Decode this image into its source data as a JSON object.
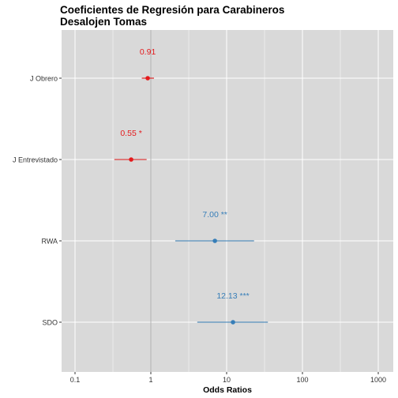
{
  "chart_data": {
    "type": "forest",
    "title_lines": [
      "Coeficientes de Regresión para Carabineros",
      "Desalojen Tomas"
    ],
    "xlabel": "Odds Ratios",
    "ylabel": "",
    "x_scale": "log10",
    "xlim": [
      0.06,
      2000
    ],
    "x_ticks": [
      0.1,
      1,
      10,
      100,
      1000
    ],
    "x_tick_labels": [
      "0.1",
      "1",
      "10",
      "100",
      "1000"
    ],
    "reference_line": 1,
    "grid": true,
    "colors": {
      "negative": "#e41a1c",
      "positive": "#377eb8",
      "panel": "#d9d9d9",
      "grid": "#ffffff",
      "reference": "#b3b3b3"
    },
    "terms": [
      {
        "label": "J Obrero",
        "estimate": 0.91,
        "ci_low": 0.76,
        "ci_high": 1.1,
        "value_label": "0.91",
        "color_key": "negative"
      },
      {
        "label": "J Entrevistado",
        "estimate": 0.55,
        "ci_low": 0.33,
        "ci_high": 0.88,
        "value_label": "0.55 *",
        "color_key": "negative"
      },
      {
        "label": "RWA",
        "estimate": 7.0,
        "ci_low": 2.1,
        "ci_high": 23.0,
        "value_label": "7.00 **",
        "color_key": "positive"
      },
      {
        "label": "SDO",
        "estimate": 12.13,
        "ci_low": 4.1,
        "ci_high": 35.0,
        "value_label": "12.13 ***",
        "color_key": "positive"
      }
    ]
  }
}
